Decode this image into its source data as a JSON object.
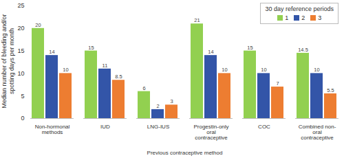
{
  "chart_data": {
    "type": "bar",
    "xlabel": "Previous contraceptive method",
    "ylabel": "Median number of bleeding and/or spotting days per month",
    "legend_title": "30 day reference periods",
    "legend": "top-right",
    "categories": [
      "Non-hormonal methods",
      "IUD",
      "LNG-IUS",
      "Progestin-only oral contraceptive",
      "COC",
      "Combined non-oral contraceptive"
    ],
    "series": [
      {
        "name": "1",
        "color": "#92d050",
        "values": [
          20,
          15,
          6,
          21,
          15,
          14.5
        ]
      },
      {
        "name": "2",
        "color": "#3355a8",
        "values": [
          14,
          11,
          2,
          14,
          10,
          10
        ]
      },
      {
        "name": "3",
        "color": "#ed7d31",
        "values": [
          10,
          8.5,
          3,
          10,
          7,
          5.5
        ]
      }
    ],
    "ylim": [
      0,
      25
    ],
    "yticks": [
      0,
      5,
      10,
      15,
      20,
      25
    ],
    "grid": false,
    "data_labels": true
  }
}
